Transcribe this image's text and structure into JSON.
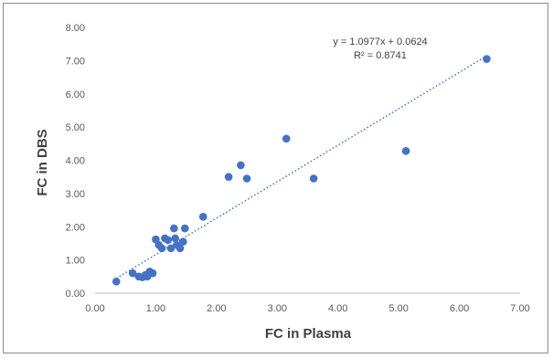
{
  "chart_data": {
    "type": "scatter",
    "title": "",
    "xlabel": "FC in Plasma",
    "ylabel": "FC in DBS",
    "xlim": [
      0,
      7
    ],
    "ylim": [
      0,
      8
    ],
    "x_ticks": [
      "0.00",
      "1.00",
      "2.00",
      "3.00",
      "4.00",
      "5.00",
      "6.00",
      "7.00"
    ],
    "y_ticks": [
      "0.00",
      "1.00",
      "2.00",
      "3.00",
      "4.00",
      "5.00",
      "6.00",
      "7.00",
      "8.00"
    ],
    "grid": false,
    "marker_color": "#4472c4",
    "trendline": {
      "style": "dotted",
      "color": "#4472c4",
      "slope": 1.0977,
      "intercept": 0.0624,
      "x_range": [
        0.35,
        6.45
      ]
    },
    "equation_text": "y = 1.0977x + 0.0624",
    "r2_text": "R² = 0.8741",
    "points": [
      {
        "x": 0.35,
        "y": 0.35
      },
      {
        "x": 0.62,
        "y": 0.6
      },
      {
        "x": 0.72,
        "y": 0.5
      },
      {
        "x": 0.78,
        "y": 0.48
      },
      {
        "x": 0.83,
        "y": 0.55
      },
      {
        "x": 0.86,
        "y": 0.5
      },
      {
        "x": 0.9,
        "y": 0.65
      },
      {
        "x": 0.95,
        "y": 0.6
      },
      {
        "x": 1.0,
        "y": 1.62
      },
      {
        "x": 1.05,
        "y": 1.45
      },
      {
        "x": 1.1,
        "y": 1.35
      },
      {
        "x": 1.15,
        "y": 1.65
      },
      {
        "x": 1.2,
        "y": 1.6
      },
      {
        "x": 1.25,
        "y": 1.35
      },
      {
        "x": 1.3,
        "y": 1.95
      },
      {
        "x": 1.32,
        "y": 1.65
      },
      {
        "x": 1.35,
        "y": 1.45
      },
      {
        "x": 1.4,
        "y": 1.35
      },
      {
        "x": 1.45,
        "y": 1.55
      },
      {
        "x": 1.48,
        "y": 1.95
      },
      {
        "x": 1.78,
        "y": 2.3
      },
      {
        "x": 2.2,
        "y": 3.5
      },
      {
        "x": 2.4,
        "y": 3.85
      },
      {
        "x": 2.5,
        "y": 3.45
      },
      {
        "x": 3.15,
        "y": 4.65
      },
      {
        "x": 3.6,
        "y": 3.45
      },
      {
        "x": 5.12,
        "y": 4.28
      },
      {
        "x": 6.45,
        "y": 7.05
      }
    ]
  }
}
